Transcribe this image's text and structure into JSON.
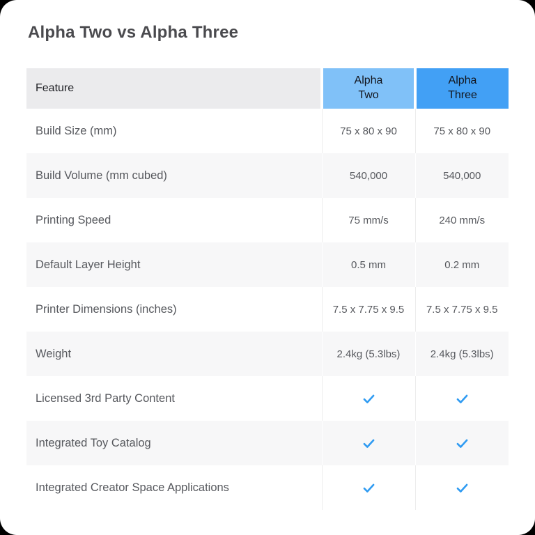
{
  "page": {
    "title": "Alpha Two vs Alpha Three"
  },
  "table": {
    "columns": [
      {
        "label": "Feature"
      },
      {
        "top": "Alpha",
        "bottom": "Two"
      },
      {
        "top": "Alpha",
        "bottom": "Three"
      }
    ],
    "rows": [
      {
        "feature": "Build Size (mm)",
        "type": "text",
        "values": [
          "75 x 80 x 90",
          "75 x 80 x 90"
        ]
      },
      {
        "feature": "Build Volume (mm cubed)",
        "type": "text",
        "values": [
          "540,000",
          "540,000"
        ]
      },
      {
        "feature": "Printing Speed",
        "type": "text",
        "values": [
          "75 mm/s",
          "240 mm/s"
        ]
      },
      {
        "feature": "Default Layer Height",
        "type": "text",
        "values": [
          "0.5 mm",
          "0.2 mm"
        ]
      },
      {
        "feature": "Printer Dimensions (inches)",
        "type": "text",
        "values": [
          "7.5 x 7.75 x 9.5",
          "7.5 x 7.75 x 9.5"
        ]
      },
      {
        "feature": "Weight",
        "type": "text",
        "values": [
          "2.4kg (5.3lbs)",
          "2.4kg (5.3lbs)"
        ]
      },
      {
        "feature": "Licensed 3rd Party Content",
        "type": "check",
        "values": [
          "check",
          "check"
        ]
      },
      {
        "feature": "Integrated Toy Catalog",
        "type": "check",
        "values": [
          "check",
          "check"
        ]
      },
      {
        "feature": "Integrated Creator Space Applications",
        "type": "check",
        "values": [
          "check",
          "check"
        ]
      }
    ]
  },
  "icons": {
    "check": "checkmark"
  },
  "colors": {
    "alpha_two_header_bg": "#80c1f8",
    "alpha_three_header_bg": "#42a0f5",
    "feature_header_bg": "#ebebed",
    "row_alt_bg": "#f7f7f8",
    "check": "#2f9bf2",
    "title_text": "#4a4a4e",
    "body_text": "#56585d"
  }
}
